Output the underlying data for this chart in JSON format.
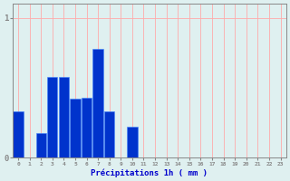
{
  "hours": [
    0,
    1,
    2,
    3,
    4,
    5,
    6,
    7,
    8,
    9,
    10,
    11,
    12,
    13,
    14,
    15,
    16,
    17,
    18,
    19,
    20,
    21,
    22,
    23
  ],
  "values": [
    0.33,
    0.0,
    0.18,
    0.58,
    0.58,
    0.42,
    0.43,
    0.78,
    0.33,
    0.0,
    0.22,
    0.0,
    0.0,
    0.0,
    0.0,
    0.0,
    0.0,
    0.0,
    0.0,
    0.0,
    0.0,
    0.0,
    0.0,
    0.0
  ],
  "bar_color": "#0033cc",
  "bar_edge_color": "#4488ff",
  "background_color": "#dff0f0",
  "grid_color": "#ffaaaa",
  "axis_color": "#888888",
  "text_color": "#0000cc",
  "xlabel": "Précipitations 1h ( mm )",
  "ylim": [
    0,
    1.1
  ],
  "yticks": [
    0,
    1
  ],
  "xlim": [
    -0.5,
    23.5
  ]
}
